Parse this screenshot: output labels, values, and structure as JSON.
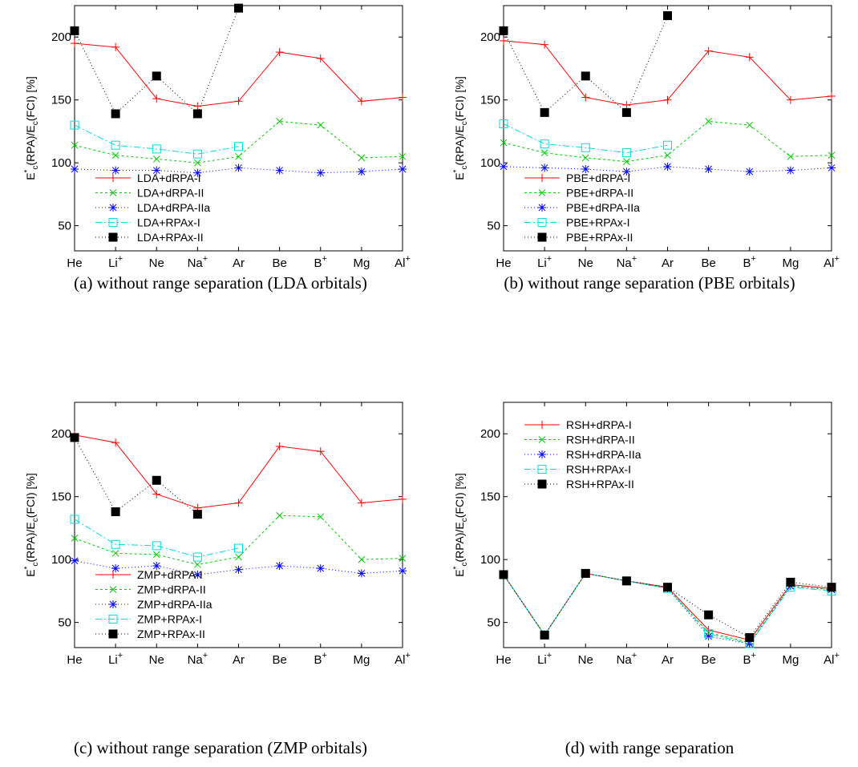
{
  "chart_data": [
    {
      "type": "line",
      "panel": "a",
      "caption": "(a)  without range separation (LDA orbitals)",
      "ylabel": "E*c(RPA)/Ec(FCI) [%]",
      "categories": [
        "He",
        "Li+",
        "Ne",
        "Na+",
        "Ar",
        "Be",
        "B+",
        "Mg",
        "Al+"
      ],
      "ylim": [
        30,
        225
      ],
      "yticks": [
        50,
        100,
        150,
        200
      ],
      "legend_position": "lower-left",
      "series": [
        {
          "name": "LDA+dRPA-I",
          "color": "#ff0000",
          "marker": "plus",
          "dash": "",
          "values": [
            195,
            192,
            151,
            145,
            149,
            188,
            183,
            149,
            152
          ]
        },
        {
          "name": "LDA+dRPA-II",
          "color": "#00cc00",
          "marker": "x",
          "dash": "3,3",
          "values": [
            114,
            106,
            103,
            100,
            105,
            133,
            130,
            104,
            105
          ]
        },
        {
          "name": "LDA+dRPA-IIa",
          "color": "#0000ff",
          "marker": "star",
          "dash": "1,3",
          "values": [
            95,
            94,
            94,
            92,
            96,
            94,
            92,
            93,
            95
          ]
        },
        {
          "name": "LDA+RPAx-I",
          "color": "#00dddd",
          "marker": "square",
          "dash": "8,3,2,3",
          "values": [
            130,
            114,
            111,
            107,
            113,
            null,
            null,
            null,
            null
          ]
        },
        {
          "name": "LDA+RPAx-II",
          "color": "#000000",
          "marker": "filled-square",
          "dash": "1,3",
          "values": [
            205,
            139,
            169,
            139,
            223,
            null,
            null,
            null,
            null
          ]
        }
      ]
    },
    {
      "type": "line",
      "panel": "b",
      "caption": "(b)  without range separation (PBE orbitals)",
      "ylabel": "E*c(RPA)/Ec(FCI) [%]",
      "categories": [
        "He",
        "Li+",
        "Ne",
        "Na+",
        "Ar",
        "Be",
        "B+",
        "Mg",
        "Al+"
      ],
      "ylim": [
        30,
        225
      ],
      "yticks": [
        50,
        100,
        150,
        200
      ],
      "legend_position": "lower-left",
      "series": [
        {
          "name": "PBE+dRPA-I",
          "color": "#ff0000",
          "marker": "plus",
          "dash": "",
          "values": [
            197,
            194,
            152,
            146,
            150,
            189,
            184,
            150,
            153
          ]
        },
        {
          "name": "PBE+dRPA-II",
          "color": "#00cc00",
          "marker": "x",
          "dash": "3,3",
          "values": [
            116,
            108,
            104,
            101,
            106,
            133,
            130,
            105,
            106
          ]
        },
        {
          "name": "PBE+dRPA-IIa",
          "color": "#0000ff",
          "marker": "star",
          "dash": "1,3",
          "values": [
            97,
            96,
            95,
            93,
            97,
            95,
            93,
            94,
            96
          ]
        },
        {
          "name": "PBE+RPAx-I",
          "color": "#00dddd",
          "marker": "square",
          "dash": "8,3,2,3",
          "values": [
            131,
            115,
            112,
            108,
            114,
            null,
            null,
            null,
            null
          ]
        },
        {
          "name": "PBE+RPAx-II",
          "color": "#000000",
          "marker": "filled-square",
          "dash": "1,3",
          "values": [
            205,
            140,
            169,
            140,
            217,
            null,
            null,
            null,
            null
          ]
        }
      ]
    },
    {
      "type": "line",
      "panel": "c",
      "caption": "(c)  without range separation (ZMP orbitals)",
      "ylabel": "E*c(RPA)/Ec(FCI) [%]",
      "categories": [
        "He",
        "Li+",
        "Ne",
        "Na+",
        "Ar",
        "Be",
        "B+",
        "Mg",
        "Al+"
      ],
      "ylim": [
        30,
        225
      ],
      "yticks": [
        50,
        100,
        150,
        200
      ],
      "legend_position": "lower-left",
      "series": [
        {
          "name": "ZMP+dRPA-I",
          "color": "#ff0000",
          "marker": "plus",
          "dash": "",
          "values": [
            199,
            193,
            152,
            141,
            145,
            190,
            186,
            145,
            148
          ]
        },
        {
          "name": "ZMP+dRPA-II",
          "color": "#00cc00",
          "marker": "x",
          "dash": "3,3",
          "values": [
            117,
            105,
            104,
            96,
            102,
            135,
            134,
            100,
            101
          ]
        },
        {
          "name": "ZMP+dRPA-IIa",
          "color": "#0000ff",
          "marker": "star",
          "dash": "1,3",
          "values": [
            99,
            93,
            95,
            88,
            92,
            95,
            93,
            89,
            91
          ]
        },
        {
          "name": "ZMP+RPAx-I",
          "color": "#00dddd",
          "marker": "square",
          "dash": "8,3,2,3",
          "values": [
            132,
            112,
            111,
            102,
            109,
            null,
            null,
            null,
            null
          ]
        },
        {
          "name": "ZMP+RPAx-II",
          "color": "#000000",
          "marker": "filled-square",
          "dash": "1,3",
          "values": [
            197,
            138,
            163,
            136,
            null,
            null,
            null,
            null,
            null
          ]
        }
      ]
    },
    {
      "type": "line",
      "panel": "d",
      "caption": "(d)  with range separation",
      "ylabel": "E*c(RPA)/Ec(FCI) [%]",
      "categories": [
        "He",
        "Li+",
        "Ne",
        "Na+",
        "Ar",
        "Be",
        "B+",
        "Mg",
        "Al+"
      ],
      "ylim": [
        30,
        225
      ],
      "yticks": [
        50,
        100,
        150,
        200
      ],
      "legend_position": "top-left",
      "series": [
        {
          "name": "RSH+dRPA-I",
          "color": "#ff0000",
          "marker": "plus",
          "dash": "",
          "values": [
            88,
            40,
            89,
            83,
            78,
            44,
            36,
            80,
            77
          ]
        },
        {
          "name": "RSH+dRPA-II",
          "color": "#00cc00",
          "marker": "x",
          "dash": "3,3",
          "values": [
            88,
            40,
            89,
            83,
            77,
            42,
            34,
            79,
            76
          ]
        },
        {
          "name": "RSH+dRPA-IIa",
          "color": "#0000ff",
          "marker": "star",
          "dash": "1,3",
          "values": [
            88,
            40,
            89,
            83,
            77,
            39,
            33,
            79,
            76
          ]
        },
        {
          "name": "RSH+RPAx-I",
          "color": "#00dddd",
          "marker": "square",
          "dash": "8,3,2,3",
          "values": [
            88,
            40,
            89,
            83,
            77,
            41,
            33,
            78,
            75
          ]
        },
        {
          "name": "RSH+RPAx-II",
          "color": "#000000",
          "marker": "filled-square",
          "dash": "1,3",
          "values": [
            88,
            40,
            89,
            83,
            78,
            56,
            38,
            82,
            78
          ]
        }
      ]
    }
  ]
}
